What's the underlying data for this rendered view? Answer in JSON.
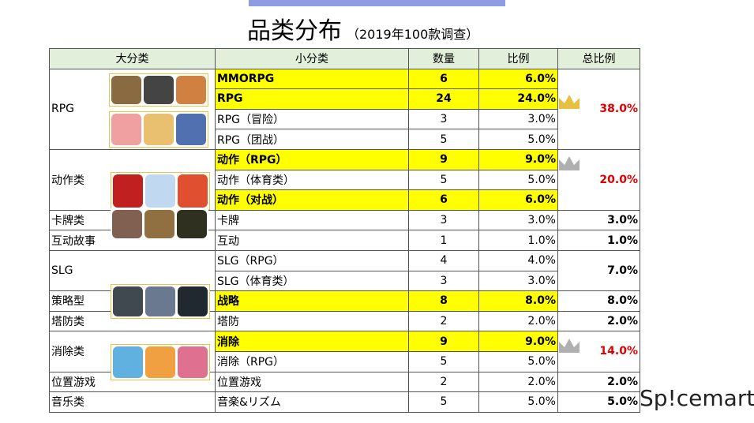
{
  "header": {
    "title": "品类分布",
    "subtitle": "（2019年100款调查）"
  },
  "table": {
    "columns": [
      "大分类",
      "小分类",
      "数量",
      "比例",
      "总比例"
    ],
    "groups": [
      {
        "name": "RPG",
        "total": "38.0%",
        "highlight": true,
        "rows": [
          {
            "sub": "MMORPG",
            "count": 6,
            "ratio": "6.0%",
            "highlight": true
          },
          {
            "sub": "RPG",
            "count": 24,
            "ratio": "24.0%",
            "highlight": true
          },
          {
            "sub": "RPG（冒险）",
            "count": 3,
            "ratio": "3.0%",
            "highlight": false
          },
          {
            "sub": "RPG（团战）",
            "count": 5,
            "ratio": "5.0%",
            "highlight": false
          }
        ]
      },
      {
        "name": "动作类",
        "total": "20.0%",
        "highlight": true,
        "rows": [
          {
            "sub": "动作（RPG）",
            "count": 9,
            "ratio": "9.0%",
            "highlight": true
          },
          {
            "sub": "动作（体育类）",
            "count": 5,
            "ratio": "5.0%",
            "highlight": false
          },
          {
            "sub": "动作（对战）",
            "count": 6,
            "ratio": "6.0%",
            "highlight": true
          }
        ]
      },
      {
        "name": "卡牌类",
        "total": "3.0%",
        "highlight": false,
        "rows": [
          {
            "sub": "卡牌",
            "count": 3,
            "ratio": "3.0%",
            "highlight": false
          }
        ]
      },
      {
        "name": "互动故事",
        "total": "1.0%",
        "highlight": false,
        "rows": [
          {
            "sub": "互动",
            "count": 1,
            "ratio": "1.0%",
            "highlight": false
          }
        ]
      },
      {
        "name": "SLG",
        "total": "7.0%",
        "highlight": false,
        "rows": [
          {
            "sub": "SLG（RPG）",
            "count": 4,
            "ratio": "4.0%",
            "highlight": false
          },
          {
            "sub": "SLG（体育类）",
            "count": 3,
            "ratio": "3.0%",
            "highlight": false
          }
        ]
      },
      {
        "name": "策略型",
        "total": "8.0%",
        "highlight": false,
        "rows": [
          {
            "sub": "战略",
            "count": 8,
            "ratio": "8.0%",
            "highlight": true
          }
        ]
      },
      {
        "name": "塔防类",
        "total": "2.0%",
        "highlight": false,
        "rows": [
          {
            "sub": "塔防",
            "count": 2,
            "ratio": "2.0%",
            "highlight": false
          }
        ]
      },
      {
        "name": "消除类",
        "total": "14.0%",
        "highlight": true,
        "rows": [
          {
            "sub": "消除",
            "count": 9,
            "ratio": "9.0%",
            "highlight": true
          },
          {
            "sub": "消除（RPG）",
            "count": 5,
            "ratio": "5.0%",
            "highlight": false
          }
        ]
      },
      {
        "name": "位置游戏",
        "total": "2.0%",
        "highlight": false,
        "rows": [
          {
            "sub": "位置游戏",
            "count": 2,
            "ratio": "2.0%",
            "highlight": false
          }
        ]
      },
      {
        "name": "音乐类",
        "total": "5.0%",
        "highlight": false,
        "rows": [
          {
            "sub": "音楽&リズム",
            "count": 5,
            "ratio": "5.0%",
            "highlight": false
          }
        ]
      }
    ]
  },
  "logo": "Sp!cemart"
}
